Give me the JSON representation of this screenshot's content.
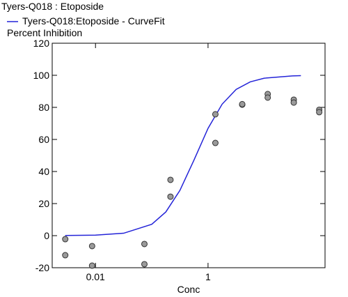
{
  "chart_data": {
    "type": "scatter",
    "title": "Tyers-Q018  : Etoposide",
    "y_label": "Percent Inhibition",
    "x_label": "Conc",
    "x_log": true,
    "xlim": [
      0.0017,
      120
    ],
    "ylim": [
      -20,
      120
    ],
    "xticks": [
      {
        "value": 0.01,
        "label": "0.01"
      },
      1
    ],
    "yticks": [
      -20,
      0,
      20,
      40,
      60,
      80,
      100,
      120
    ],
    "series": [
      {
        "type": "line",
        "name": "Tyers-Q018:Etoposide - CurveFit",
        "color": "#2323d8",
        "x": [
          0.0029,
          0.01,
          0.0316,
          0.1,
          0.178,
          0.316,
          0.562,
          1,
          1.78,
          3.16,
          5.62,
          10,
          31.6,
          44.7
        ],
        "values": [
          0.1,
          0.3,
          1.5,
          7.1,
          14.8,
          28.2,
          47.1,
          66.9,
          82.0,
          91.2,
          95.9,
          98.2,
          99.6,
          99.8
        ]
      },
      {
        "type": "scatter",
        "color": "#9a9a9a",
        "x": [
          0.0029,
          0.0029,
          0.0087,
          0.0087,
          0.074,
          0.074,
          0.215,
          0.215,
          1.35,
          1.35,
          4.05,
          4.05,
          11.5,
          11.5,
          33.4,
          33.4,
          94.6,
          94.6
        ],
        "values": [
          -2.2,
          -12.2,
          -6.5,
          -18.7,
          -5.2,
          -17.8,
          34.8,
          24.3,
          75.7,
          57.8,
          81.7,
          82,
          88.3,
          86.1,
          84.8,
          83,
          78.5,
          77
        ]
      }
    ]
  }
}
